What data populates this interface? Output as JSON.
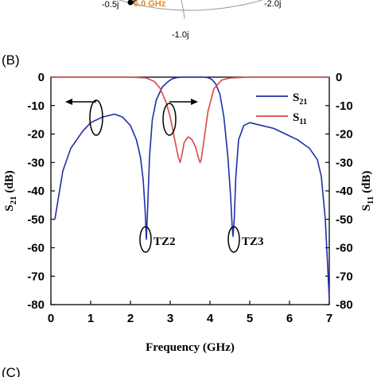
{
  "top_fragment": {
    "labels": [
      "-0.5j",
      "-1.0j",
      "-2.0j"
    ],
    "marker_label": "6.0 GHz",
    "marker_color": "#e8891c"
  },
  "panel_labels": {
    "b": "(B)",
    "c": "(C)"
  },
  "chart_data": {
    "type": "line",
    "xlabel": "Frequency (GHz)",
    "ylabel_left": "S21 (dB)",
    "ylabel_right": "S11 (dB)",
    "xlim": [
      0,
      7
    ],
    "ylim": [
      -80,
      0
    ],
    "xticks": [
      0,
      1,
      2,
      3,
      4,
      5,
      6,
      7
    ],
    "yticks": [
      0,
      -10,
      -20,
      -30,
      -40,
      -50,
      -60,
      -70,
      -80
    ],
    "legend": {
      "position": "top-right",
      "entries": [
        {
          "main": "S",
          "sub": "21",
          "color": "#1f2fa8"
        },
        {
          "main": "S",
          "sub": "11",
          "color": "#d9474c"
        }
      ]
    },
    "series": [
      {
        "name": "S21",
        "color": "#1f2fa8",
        "axis": "left",
        "x": [
          0.1,
          0.3,
          0.5,
          0.8,
          1.0,
          1.3,
          1.6,
          1.8,
          2.0,
          2.15,
          2.25,
          2.32,
          2.37,
          2.4,
          2.43,
          2.48,
          2.55,
          2.65,
          2.8,
          2.95,
          3.05,
          3.15,
          3.3,
          3.5,
          3.7,
          3.85,
          3.95,
          4.05,
          4.15,
          4.25,
          4.35,
          4.45,
          4.52,
          4.56,
          4.58,
          4.61,
          4.65,
          4.72,
          4.85,
          5.0,
          5.3,
          5.6,
          5.9,
          6.2,
          6.5,
          6.7,
          6.8,
          6.9,
          7.0
        ],
        "y": [
          -50,
          -33,
          -25,
          -19,
          -16,
          -14,
          -13,
          -14,
          -17,
          -22,
          -28,
          -36,
          -47,
          -57,
          -47,
          -28,
          -15,
          -8,
          -3.5,
          -1.5,
          -0.6,
          -0.2,
          0,
          0,
          0,
          0,
          -0.2,
          -0.8,
          -2.5,
          -6,
          -14,
          -28,
          -42,
          -53,
          -56,
          -50,
          -35,
          -22,
          -17,
          -16,
          -17,
          -18,
          -20,
          -22,
          -25,
          -29,
          -35,
          -50,
          -78
        ]
      },
      {
        "name": "S11",
        "color": "#d9474c",
        "axis": "right",
        "x": [
          0.0,
          1.0,
          2.0,
          2.4,
          2.6,
          2.75,
          2.9,
          3.0,
          3.1,
          3.2,
          3.25,
          3.3,
          3.35,
          3.45,
          3.55,
          3.65,
          3.7,
          3.75,
          3.78,
          3.85,
          3.95,
          4.1,
          4.3,
          4.5,
          5.0,
          6.0,
          7.0
        ],
        "y": [
          0,
          0,
          0,
          -0.3,
          -1.5,
          -4,
          -9,
          -14,
          -21,
          -28,
          -30,
          -27,
          -23,
          -21,
          -22,
          -25,
          -28,
          -30,
          -29,
          -22,
          -12,
          -4,
          -1,
          -0.3,
          0,
          0,
          0
        ]
      }
    ],
    "annotations": [
      {
        "text": "TZ2",
        "x": 2.4,
        "y": -57
      },
      {
        "text": "TZ3",
        "x": 4.58,
        "y": -56
      }
    ]
  }
}
